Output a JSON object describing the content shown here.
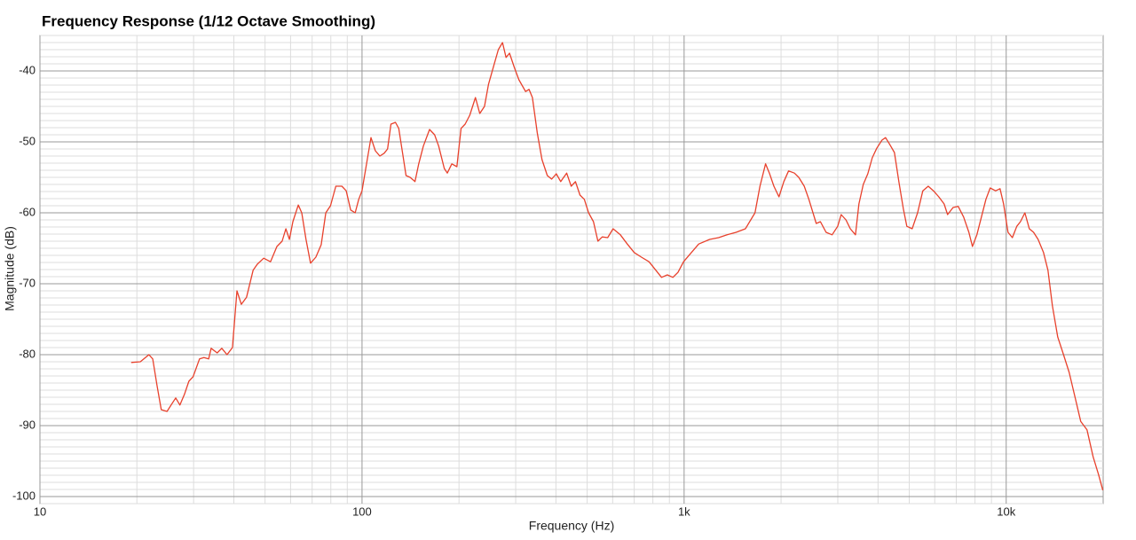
{
  "chart_data": {
    "type": "line",
    "title": "Frequency Response (1/12 Octave Smoothing)",
    "x_label": "Frequency (Hz)",
    "y_label": "Magnitude (dB)",
    "xscale": "log",
    "grid": true,
    "minor_grid": true,
    "xlim": [
      10,
      20000
    ],
    "ylim": [
      -101,
      -35
    ],
    "xticks": [
      10,
      100,
      {
        "value": 1000,
        "label": "1k"
      },
      {
        "value": 10000,
        "label": "10k"
      }
    ],
    "yticks": [
      -40,
      -50,
      -60,
      -70,
      -80,
      -90,
      -100
    ],
    "x": [
      19.2,
      20.5,
      21.8,
      22.4,
      23.1,
      23.8,
      24.8,
      25.7,
      26.4,
      27.2,
      28.1,
      29.0,
      29.9,
      31.3,
      32.3,
      33.4,
      34.0,
      35.5,
      36.7,
      38.1,
      39.6,
      40.9,
      42.2,
      43.8,
      45.9,
      47.3,
      49.5,
      52.0,
      54.4,
      56.5,
      58,
      59.5,
      61,
      63.4,
      65,
      67,
      69.2,
      71.9,
      74.7,
      77.2,
      79.8,
      82.9,
      86.6,
      89.3,
      92.2,
      95.2,
      97.7,
      100,
      103.3,
      106.6,
      110,
      113.6,
      117.2,
      120,
      123,
      127,
      130,
      134,
      137,
      141,
      146,
      150,
      155,
      162,
      168,
      173,
      180,
      184,
      190,
      197,
      203,
      209,
      216,
      225,
      232,
      240,
      247,
      257,
      265,
      273,
      280,
      287,
      297,
      307,
      322,
      330,
      338,
      350,
      362,
      376,
      388,
      401,
      414,
      432,
      446,
      460,
      475,
      490,
      505,
      523,
      540,
      557,
      579,
      602,
      634,
      666,
      700,
      737,
      778,
      817,
      851,
      887,
      923,
      957,
      996,
      1040,
      1110,
      1200,
      1280,
      1360,
      1450,
      1550,
      1660,
      1720,
      1790,
      1840,
      1900,
      1970,
      2040,
      2110,
      2200,
      2270,
      2360,
      2440,
      2572,
      2650,
      2760,
      2880,
      2998,
      3074,
      3180,
      3280,
      3403,
      3490,
      3600,
      3717,
      3837,
      3963,
      4114,
      4220,
      4355,
      4498,
      4643,
      4791,
      4915,
      5105,
      5307,
      5508,
      5727,
      5945,
      6177,
      6417,
      6577,
      6839,
      7099,
      7375,
      7659,
      7857,
      8110,
      8374,
      8648,
      8917,
      9268,
      9566,
      9817,
      10130,
      10450,
      10790,
      11070,
      11430,
      11800,
      12160,
      12560,
      13060,
      13480,
      13910,
      14450,
      15000,
      15690,
      16410,
      17030,
      17820,
      18620,
      19350,
      19950
    ],
    "series": [
      {
        "name": "Magnitude",
        "color": "#e8412c",
        "values": [
          -81.1,
          -81,
          -80,
          -80.6,
          -84.4,
          -87.75,
          -88,
          -86.9,
          -86.1,
          -87.1,
          -85.6,
          -83.75,
          -83.1,
          -80.6,
          -80.4,
          -80.6,
          -79.1,
          -79.75,
          -79.1,
          -80,
          -79,
          -71,
          -72.9,
          -71.9,
          -68.1,
          -67.25,
          -66.4,
          -66.9,
          -64.75,
          -64,
          -62.25,
          -63.75,
          -61.25,
          -58.9,
          -60,
          -63.75,
          -67.1,
          -66.25,
          -64.5,
          -60,
          -59,
          -56.25,
          -56.25,
          -56.9,
          -59.6,
          -60,
          -58.1,
          -56.9,
          -53.1,
          -49.4,
          -51.25,
          -52,
          -51.6,
          -51,
          -47.5,
          -47.25,
          -48.1,
          -51.9,
          -54.75,
          -55,
          -55.6,
          -53.1,
          -50.6,
          -48.25,
          -49,
          -50.6,
          -53.75,
          -54.4,
          -53.1,
          -53.5,
          -48.1,
          -47.5,
          -46.25,
          -43.75,
          -46,
          -45,
          -41.9,
          -39.1,
          -37,
          -36,
          -38.1,
          -37.5,
          -39.5,
          -41.25,
          -42.9,
          -42.6,
          -43.75,
          -48.75,
          -52.5,
          -54.75,
          -55.25,
          -54.5,
          -55.6,
          -54.4,
          -56.25,
          -55.6,
          -57.5,
          -58.1,
          -60,
          -61.25,
          -64,
          -63.4,
          -63.5,
          -62.25,
          -63.1,
          -64.4,
          -65.6,
          -66.25,
          -66.9,
          -68.1,
          -69.1,
          -68.75,
          -69.1,
          -68.4,
          -66.9,
          -65.9,
          -64.4,
          -63.75,
          -63.5,
          -63.1,
          -62.75,
          -62.25,
          -60,
          -56.25,
          -53.1,
          -54.4,
          -56.25,
          -57.75,
          -55.6,
          -54.1,
          -54.4,
          -55,
          -56.25,
          -58.1,
          -61.5,
          -61.25,
          -62.75,
          -63.1,
          -61.9,
          -60.25,
          -61,
          -62.25,
          -63.1,
          -58.75,
          -56,
          -54.5,
          -52.25,
          -50.9,
          -49.75,
          -49.4,
          -50.4,
          -51.5,
          -55.6,
          -59.4,
          -61.9,
          -62.25,
          -60,
          -56.9,
          -56.25,
          -56.9,
          -57.75,
          -58.75,
          -60.25,
          -59.25,
          -59.1,
          -60.6,
          -62.75,
          -64.75,
          -63.1,
          -60.6,
          -58.1,
          -56.5,
          -56.9,
          -56.6,
          -58.75,
          -62.75,
          -63.5,
          -61.9,
          -61.25,
          -60,
          -62.25,
          -62.75,
          -63.75,
          -65.6,
          -68.1,
          -73.1,
          -77.5,
          -79.75,
          -82.5,
          -86.25,
          -89.4,
          -90.6,
          -94.4,
          -96.9,
          -99.1
        ]
      }
    ]
  }
}
